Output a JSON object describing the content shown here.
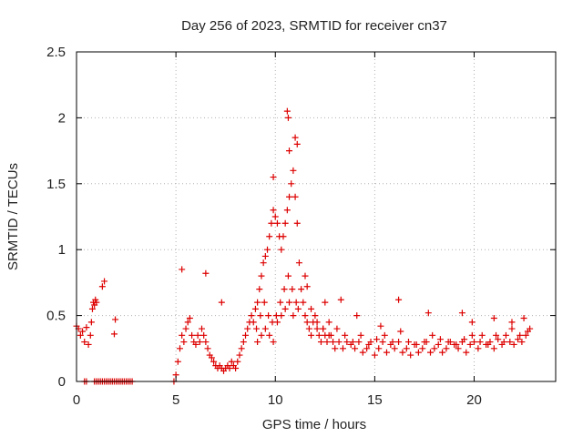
{
  "chart_data": {
    "type": "scatter",
    "title": "Day 256 of 2023, SRMTID for receiver cn37",
    "xlabel": "GPS time / hours",
    "ylabel": "SRMTID / TECUs",
    "xlim": [
      0,
      24.1
    ],
    "ylim": [
      0,
      2.5
    ],
    "xticks": [
      0,
      5,
      10,
      15,
      20
    ],
    "yticks": [
      0,
      0.5,
      1,
      1.5,
      2,
      2.5
    ],
    "xtick_labels": [
      "0",
      "5",
      "10",
      "15",
      "20"
    ],
    "ytick_labels": [
      "0",
      "0.5",
      "1",
      "1.5",
      "2",
      "2.5"
    ],
    "grid": true,
    "marker": "+",
    "series": [
      {
        "name": "SRMTID",
        "color": "#dd0000",
        "x": [
          0.0,
          0.1,
          0.2,
          0.3,
          0.4,
          0.5,
          0.6,
          0.7,
          0.75,
          0.8,
          0.85,
          0.9,
          0.95,
          1.0,
          1.3,
          1.4,
          1.9,
          1.95,
          0.4,
          0.5,
          0.9,
          1.0,
          1.1,
          1.2,
          1.3,
          1.4,
          1.5,
          1.6,
          1.7,
          1.8,
          1.9,
          2.0,
          2.1,
          2.2,
          2.3,
          2.4,
          2.5,
          2.6,
          2.7,
          2.8,
          4.9,
          5.0,
          5.1,
          5.2,
          5.3,
          5.4,
          5.5,
          5.6,
          5.7,
          5.8,
          5.9,
          6.0,
          6.1,
          6.2,
          6.3,
          6.4,
          6.5,
          6.6,
          6.7,
          6.8,
          6.9,
          7.0,
          7.1,
          7.2,
          7.3,
          7.4,
          7.5,
          7.6,
          7.7,
          7.8,
          7.9,
          8.0,
          8.1,
          8.2,
          8.3,
          8.4,
          8.5,
          8.6,
          8.7,
          8.8,
          8.9,
          9.0,
          9.1,
          9.2,
          9.3,
          9.4,
          9.5,
          9.6,
          9.7,
          9.8,
          9.9,
          10.0,
          10.1,
          10.2,
          10.3,
          10.4,
          10.5,
          10.6,
          10.7,
          10.8,
          10.9,
          11.0,
          11.1,
          11.2,
          9.05,
          9.25,
          9.45,
          9.65,
          9.85,
          10.05,
          10.25,
          10.45,
          10.65,
          10.85,
          11.05,
          11.15,
          9.1,
          9.3,
          9.5,
          9.7,
          9.9,
          10.1,
          10.3,
          10.5,
          10.7,
          10.9,
          11.3,
          11.4,
          11.5,
          11.6,
          11.7,
          11.8,
          11.9,
          12.0,
          12.1,
          12.2,
          12.3,
          12.4,
          12.5,
          12.6,
          12.7,
          12.8,
          12.9,
          13.0,
          13.2,
          13.4,
          13.6,
          13.8,
          14.0,
          14.2,
          14.4,
          14.6,
          14.8,
          15.0,
          15.2,
          15.4,
          15.6,
          15.8,
          16.0,
          16.2,
          16.4,
          16.6,
          16.8,
          17.0,
          17.2,
          17.4,
          17.6,
          17.8,
          18.0,
          18.2,
          18.4,
          18.6,
          18.8,
          19.0,
          19.2,
          19.4,
          19.6,
          19.8,
          20.0,
          20.2,
          20.4,
          20.6,
          20.8,
          21.0,
          21.2,
          21.4,
          21.6,
          21.8,
          22.0,
          22.2,
          22.4,
          22.6,
          22.8,
          11.8,
          12.1,
          12.4,
          12.7,
          13.1,
          13.5,
          13.9,
          14.3,
          14.7,
          15.1,
          15.5,
          15.9,
          16.3,
          16.7,
          17.1,
          17.5,
          17.9,
          18.3,
          18.7,
          19.1,
          19.5,
          19.9,
          20.3,
          20.7,
          21.1,
          21.5,
          21.9,
          22.3,
          22.7,
          11.6,
          12.5,
          13.3,
          14.1,
          15.3,
          16.2,
          17.7,
          19.4,
          19.9,
          21.0,
          21.9,
          22.5,
          5.3,
          6.5,
          7.3,
          9.9,
          10.6,
          10.65,
          10.7,
          11.0,
          11.1,
          11.5
        ],
        "y": [
          0.42,
          0.4,
          0.35,
          0.38,
          0.3,
          0.41,
          0.28,
          0.35,
          0.45,
          0.55,
          0.6,
          0.58,
          0.62,
          0.6,
          0.72,
          0.76,
          0.36,
          0.47,
          0,
          0,
          0,
          0,
          0,
          0,
          0,
          0,
          0,
          0,
          0,
          0,
          0,
          0,
          0,
          0,
          0,
          0,
          0,
          0,
          0,
          0,
          0,
          0.05,
          0.15,
          0.25,
          0.35,
          0.3,
          0.4,
          0.45,
          0.48,
          0.35,
          0.3,
          0.28,
          0.35,
          0.3,
          0.4,
          0.35,
          0.3,
          0.25,
          0.2,
          0.18,
          0.15,
          0.12,
          0.1,
          0.12,
          0.1,
          0.08,
          0.1,
          0.12,
          0.1,
          0.15,
          0.12,
          0.1,
          0.15,
          0.2,
          0.25,
          0.3,
          0.35,
          0.4,
          0.45,
          0.5,
          0.45,
          0.55,
          0.6,
          0.7,
          0.8,
          0.9,
          0.95,
          1.0,
          1.1,
          1.2,
          1.3,
          1.25,
          1.2,
          1.1,
          1.0,
          1.1,
          1.2,
          1.3,
          1.4,
          1.5,
          1.6,
          1.4,
          1.2,
          0.9,
          0.4,
          0.5,
          0.6,
          0.5,
          0.45,
          0.5,
          0.6,
          0.7,
          0.8,
          0.7,
          0.6,
          0.55,
          0.3,
          0.35,
          0.4,
          0.35,
          0.3,
          0.45,
          0.5,
          0.55,
          0.6,
          0.5,
          0.7,
          0.6,
          0.5,
          0.45,
          0.4,
          0.35,
          0.45,
          0.5,
          0.4,
          0.35,
          0.3,
          0.4,
          0.35,
          0.3,
          0.45,
          0.35,
          0.3,
          0.25,
          0.3,
          0.25,
          0.3,
          0.28,
          0.25,
          0.3,
          0.22,
          0.25,
          0.3,
          0.2,
          0.25,
          0.3,
          0.22,
          0.28,
          0.25,
          0.3,
          0.22,
          0.25,
          0.2,
          0.28,
          0.22,
          0.25,
          0.3,
          0.22,
          0.25,
          0.28,
          0.22,
          0.25,
          0.3,
          0.28,
          0.25,
          0.3,
          0.22,
          0.28,
          0.3,
          0.25,
          0.35,
          0.28,
          0.3,
          0.25,
          0.32,
          0.28,
          0.35,
          0.3,
          0.28,
          0.32,
          0.3,
          0.35,
          0.4,
          0.55,
          0.45,
          0.4,
          0.35,
          0.4,
          0.35,
          0.3,
          0.35,
          0.28,
          0.32,
          0.35,
          0.3,
          0.38,
          0.3,
          0.28,
          0.3,
          0.35,
          0.32,
          0.3,
          0.28,
          0.32,
          0.35,
          0.3,
          0.28,
          0.35,
          0.3,
          0.4,
          0.35,
          0.38,
          0.72,
          0.6,
          0.62,
          0.5,
          0.42,
          0.62,
          0.52,
          0.52,
          0.45,
          0.48,
          0.45,
          0.48,
          0.85,
          0.82,
          0.6,
          1.55,
          2.05,
          2.0,
          1.75,
          1.85,
          1.8,
          0.8
        ]
      }
    ]
  }
}
